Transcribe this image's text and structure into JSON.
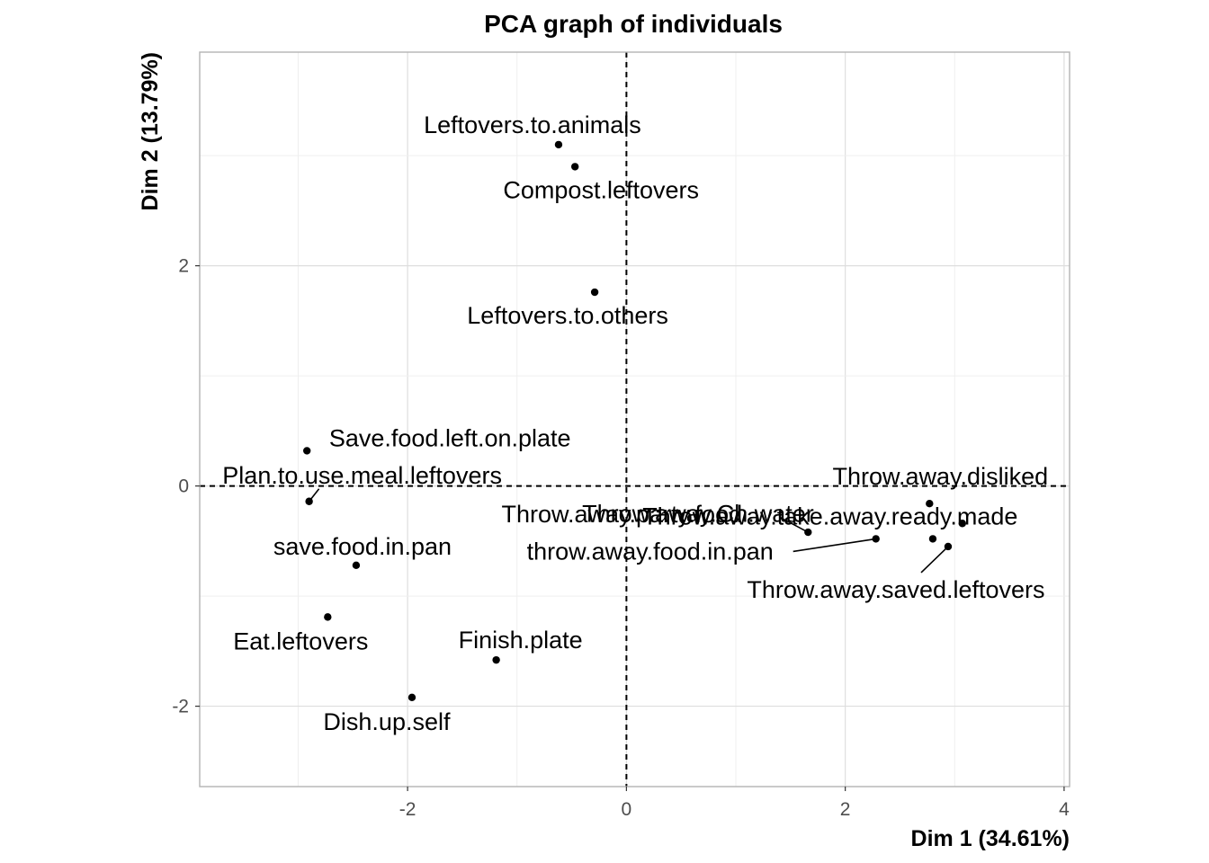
{
  "chart_data": {
    "type": "scatter",
    "title": "PCA graph of individuals",
    "xlabel": "Dim 1 (34.61%)",
    "ylabel": "Dim 2 (13.79%)",
    "xlim": [
      -3.9,
      4.05
    ],
    "ylim": [
      -2.73,
      3.94
    ],
    "x_ticks": [
      -2,
      0,
      2,
      4
    ],
    "y_ticks": [
      -2,
      0,
      2
    ],
    "x_tick_labels": [
      "-2",
      "0",
      "2",
      "4"
    ],
    "y_tick_labels": [
      "-2",
      "0",
      "2"
    ],
    "grid": true,
    "reference_lines": [
      {
        "axis": "x",
        "value": 0,
        "style": "dashed"
      },
      {
        "axis": "y",
        "value": 0,
        "style": "dashed"
      }
    ],
    "point_color": "#000000",
    "points": [
      {
        "label": "Leftovers.to.animals",
        "x": -0.62,
        "y": 3.1
      },
      {
        "label": "Compost.leftovers",
        "x": -0.47,
        "y": 2.9
      },
      {
        "label": "Leftovers.to.others",
        "x": -0.29,
        "y": 1.76
      },
      {
        "label": "Save.food.left.on.plate",
        "x": -2.92,
        "y": 0.32
      },
      {
        "label": "Plan.to.use.meal.leftovers",
        "x": -2.9,
        "y": -0.14
      },
      {
        "label": "save.food.in.pan",
        "x": -2.47,
        "y": -0.72
      },
      {
        "label": "Eat.leftovers",
        "x": -2.73,
        "y": -1.19
      },
      {
        "label": "Finish.plate",
        "x": -1.19,
        "y": -1.58
      },
      {
        "label": "Dish.up.self",
        "x": -1.96,
        "y": -1.92
      },
      {
        "label": "Throw.away.disliked",
        "x": 2.77,
        "y": -0.16
      },
      {
        "label": "Throw.away.take.away.ready.made",
        "x": 3.07,
        "y": -0.34
      },
      {
        "label": "Throw.away.party.food",
        "x": 1.66,
        "y": -0.42
      },
      {
        "label": "Throw.away.Ch.water",
        "x": 2.8,
        "y": -0.48
      },
      {
        "label": "throw.away.food.in.pan",
        "x": 2.28,
        "y": -0.48
      },
      {
        "label": "Throw.away.saved.leftovers",
        "x": 2.94,
        "y": -0.55
      }
    ]
  }
}
